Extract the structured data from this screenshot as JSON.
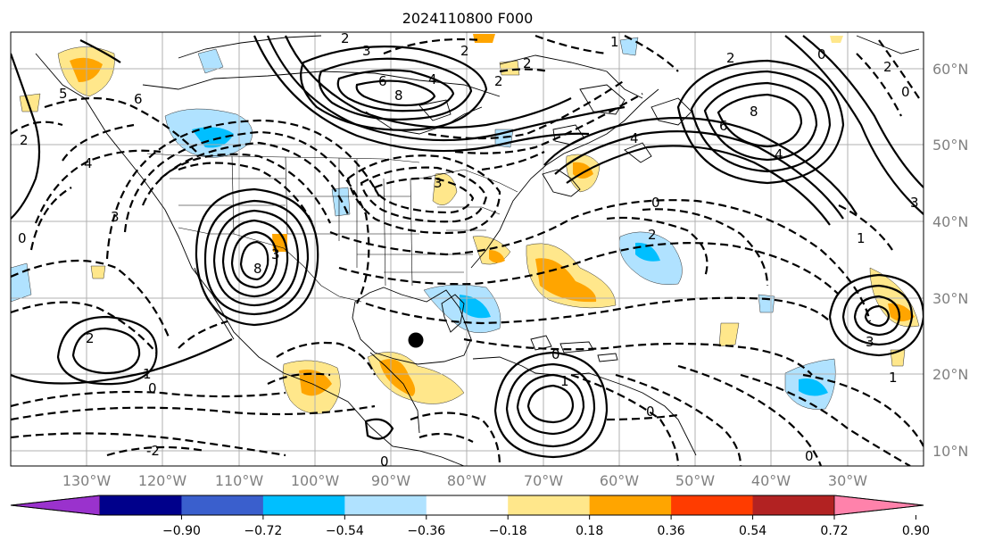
{
  "title": "2024110800 F000",
  "latitude_labels": [
    "60°N",
    "50°N",
    "40°N",
    "30°N",
    "20°N",
    "10°N"
  ],
  "longitude_labels": [
    "130°W",
    "120°W",
    "110°W",
    "100°W",
    "90°W",
    "80°W",
    "70°W",
    "60°W",
    "50°W",
    "40°W",
    "30°W"
  ],
  "contour_labels": [
    "2",
    "3",
    "2",
    "1",
    "6",
    "8",
    "4",
    "2",
    "2",
    "0",
    "2",
    "6",
    "8",
    "4",
    "0",
    "2",
    "6",
    "5",
    "4",
    "3",
    "2",
    "0",
    "4",
    "3",
    "2",
    "0",
    "3",
    "1",
    "8",
    "3",
    "2",
    "1",
    "0",
    "-2",
    "0",
    "0",
    "0",
    "1",
    "3",
    "0",
    "1"
  ],
  "colorbar": {
    "tick_labels": [
      "−0.90",
      "−0.72",
      "−0.54",
      "−0.36",
      "−0.18",
      "0.18",
      "0.36",
      "0.54",
      "0.72",
      "0.90"
    ],
    "colors": [
      "#9a32cd",
      "#00008b",
      "#3a5fcd",
      "#00bfff",
      "#b0e2ff",
      "#ffffff",
      "#ffe78b",
      "#ffa500",
      "#ff3c00",
      "#b22222",
      "#ff82ab"
    ]
  },
  "marker": {
    "symbol": "black-dot"
  }
}
